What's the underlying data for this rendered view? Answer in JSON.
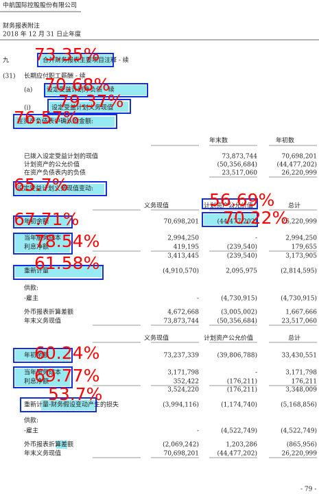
{
  "header": {
    "company": "中航国际控股股份有限公司",
    "title": "财务报表附注",
    "period": "2018 年 12 月 31 日止年度"
  },
  "texts": [
    "九",
    "合并财务报表主要项目注释 - 续",
    "(31)",
    "长期应付职工薪酬 - 续",
    "(a)",
    "设定受益计划净负债 - 续",
    "(i)",
    "设定受益计划义务现值",
    "在资产负债表中确认的金额:",
    "年末数",
    "年初数",
    "设定受益计划义务现值变动:",
    "义务现值",
    "计划资产公允价值",
    "总计",
    "供款:",
    "义务现值",
    "计划资产公允价值",
    "总计",
    "供款:",
    "- 79 -"
  ],
  "rows": [
    {
      "label": "已拨入设定受益计划的现值",
      "values": [
        "73,873,744",
        "70,698,201"
      ]
    },
    {
      "label": "计划资产的公允价值",
      "values": [
        "(50,356,684)",
        "(44,477,202)"
      ]
    },
    {
      "label": "在资产负债表内的负债",
      "values": [
        "23,517,060",
        "26,220,999"
      ]
    },
    {
      "label": "年初余额",
      "values": [
        "70,698,201",
        "(44,477,202)",
        "26,220,999"
      ]
    },
    {
      "label": "当年服务成本",
      "values": [
        "2,994,250",
        "-",
        "2,994,250"
      ]
    },
    {
      "label": "利息净额",
      "values": [
        "419,195",
        "(239,540)",
        "179,655"
      ]
    },
    {
      "values": [
        "3,413,445",
        "(239,540)",
        "3,173,905"
      ]
    },
    {
      "label": "重新计量",
      "values": [
        "(4,910,570)",
        "2,095,975",
        "(2,814,595)"
      ]
    },
    {
      "label": "-雇主",
      "values": [
        "-",
        "(4,730,915)",
        "(4,730,915)"
      ]
    },
    {
      "label": "外币报表折算差额",
      "values": [
        "4,672,668",
        "(3,005,002)",
        "1,667,666"
      ]
    },
    {
      "label": "年末义务现值",
      "values": [
        "73,873,744",
        "(50,356,684)",
        "23,517,060"
      ]
    },
    {
      "label": "年初余额",
      "values": [
        "73,237,339",
        "(39,806,788)",
        "33,430,551"
      ]
    },
    {
      "label": "当年服务成本",
      "values": [
        "3,171,798",
        "-",
        "3,171,798"
      ]
    },
    {
      "label": "利息净额",
      "values": [
        "352,422",
        "(176,211)",
        "176,211"
      ]
    },
    {
      "values": [
        "3,524,220",
        "(176,211)",
        "3,348,009"
      ]
    },
    {
      "label": "重新计量-财务假设变动产生的损失",
      "values": [
        "(3,994,116)",
        "(1,174,740)",
        "(5,168,856)"
      ]
    },
    {
      "label": "-雇主",
      "values": [
        "-",
        "(4,522,749)",
        "(4,522,749)"
      ]
    },
    {
      "label": "外币报表折算差额",
      "values": [
        "(2,069,242)",
        "1,203,286",
        "(865,956)"
      ]
    },
    {
      "label": "年末义务现值",
      "values": [
        "70,698,201",
        "(44,477,202)",
        "26,220,999"
      ]
    }
  ],
  "detections": [
    "73.35%",
    "70.68%",
    "79.37%",
    "76.57%",
    "65.7%",
    "56.69%",
    "70.22%",
    "67.71%",
    "78.54%",
    "61.58%",
    "60.24%",
    "69.77%",
    "53.7%"
  ]
}
